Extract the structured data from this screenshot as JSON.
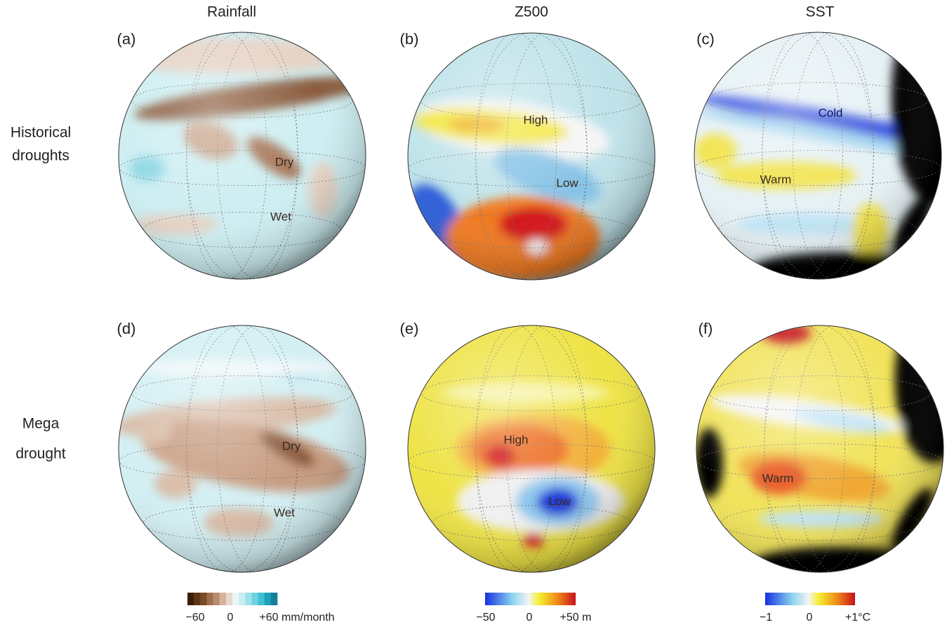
{
  "columns": [
    "Rainfall",
    "Z500",
    "SST"
  ],
  "rows": [
    [
      "Historical",
      "droughts"
    ],
    [
      "Mega",
      "drought"
    ]
  ],
  "panels": [
    {
      "label": "(a)",
      "annotations": [
        "Dry",
        "Wet"
      ]
    },
    {
      "label": "(b)",
      "annotations": [
        "High",
        "Low"
      ]
    },
    {
      "label": "(c)",
      "annotations": [
        "Cold",
        "Warm"
      ]
    },
    {
      "label": "(d)",
      "annotations": [
        "Dry",
        "Wet"
      ]
    },
    {
      "label": "(e)",
      "annotations": [
        "High",
        "Low"
      ]
    },
    {
      "label": "(f)",
      "annotations": [
        "Warm"
      ]
    }
  ],
  "colorbars": [
    {
      "ticks": [
        "−60",
        "0",
        "+60 mm/month"
      ]
    },
    {
      "ticks": [
        "−50",
        "0",
        "+50 m"
      ]
    },
    {
      "ticks": [
        "−1",
        "0",
        "+1°C"
      ]
    }
  ]
}
